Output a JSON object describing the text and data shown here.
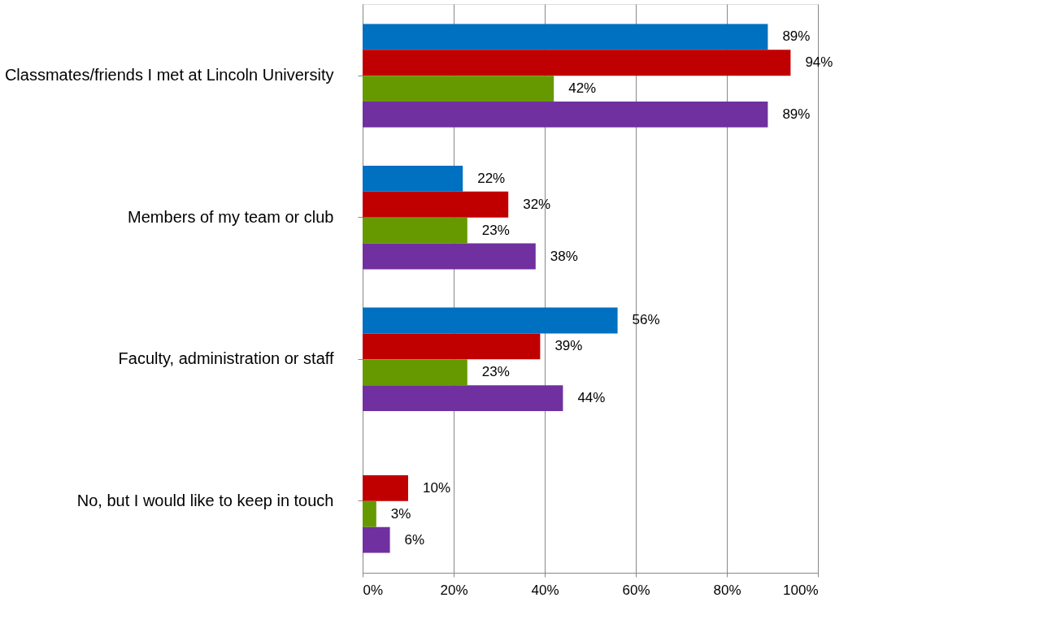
{
  "chart_data": {
    "type": "bar",
    "orientation": "horizontal",
    "categories": [
      "Classmates/friends I met at Lincoln University",
      "Members of my team or club",
      "Faculty, administration or staff",
      "No, but I would like to keep in touch"
    ],
    "series": [
      {
        "color": "#0070c0",
        "values": [
          89,
          22,
          56,
          null
        ],
        "value_labels": [
          "89%",
          "22%",
          "56%",
          null
        ]
      },
      {
        "color": "#c00000",
        "values": [
          94,
          32,
          39,
          10
        ],
        "value_labels": [
          "94%",
          "32%",
          "39%",
          "10%"
        ]
      },
      {
        "color": "#669900",
        "values": [
          42,
          23,
          23,
          3
        ],
        "value_labels": [
          "42%",
          "23%",
          "23%",
          "3%"
        ]
      },
      {
        "color": "#7030a0",
        "values": [
          89,
          38,
          44,
          6
        ],
        "value_labels": [
          "89%",
          "38%",
          "44%",
          "6%"
        ]
      }
    ],
    "xlim": [
      0,
      100
    ],
    "xticks": [
      {
        "value": 0,
        "label": "0%"
      },
      {
        "value": 20,
        "label": "20%"
      },
      {
        "value": 40,
        "label": "40%"
      },
      {
        "value": 60,
        "label": "60%"
      },
      {
        "value": 80,
        "label": "80%"
      },
      {
        "value": 100,
        "label": "100%"
      }
    ],
    "grid": "x"
  }
}
